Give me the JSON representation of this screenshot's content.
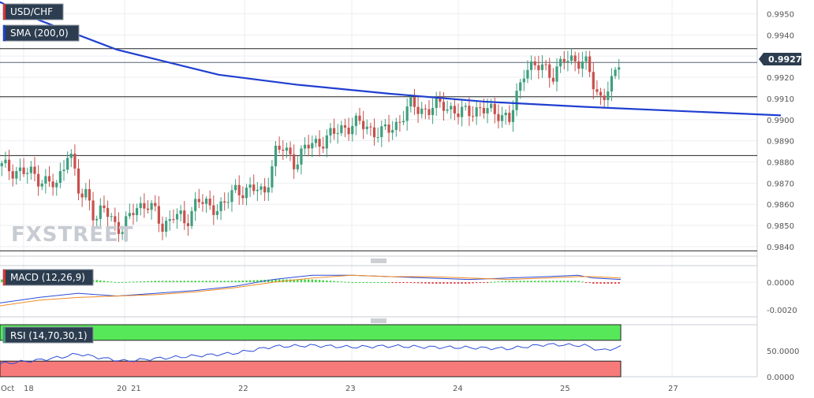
{
  "chart_data": {
    "type": "candlestick",
    "symbol": "USD/CHF",
    "indicators": {
      "sma_label": "SMA (200,0)",
      "macd_label": "MACD (12,26,9)",
      "rsi_label": "RSI (14,70,30,1)"
    },
    "watermark": "FXSTREET",
    "last_price": "0.99270",
    "price_axis": {
      "ticks": [
        "0.9950",
        "0.9940",
        "0.9930",
        "0.9920",
        "0.9910",
        "0.9900",
        "0.9890",
        "0.9880",
        "0.9870",
        "0.9860",
        "0.9850",
        "0.9840"
      ],
      "range": [
        0.98355,
        0.99565
      ]
    },
    "macd_axis": {
      "ticks": [
        "0.0000",
        "-0.0020"
      ],
      "range": [
        -0.0025,
        0.0012
      ]
    },
    "rsi_axis": {
      "ticks": [
        "50.0000",
        "0.0000"
      ],
      "range": [
        0,
        100
      ],
      "overbought": 70,
      "oversold": 30
    },
    "x_axis": {
      "labels": [
        "Oct",
        "18",
        "20",
        "21",
        "22",
        "23",
        "24",
        "25",
        "27"
      ]
    },
    "horizontal_levels": [
      0.99335,
      0.99108,
      0.9883,
      0.9838
    ],
    "sma200": [
      [
        0,
        0.99555
      ],
      [
        0.05,
        0.9947
      ],
      [
        0.15,
        0.9933
      ],
      [
        0.28,
        0.99212
      ],
      [
        0.38,
        0.99165
      ],
      [
        0.5,
        0.99122
      ],
      [
        0.62,
        0.99085
      ],
      [
        0.75,
        0.9906
      ],
      [
        1.0,
        0.9902
      ]
    ],
    "price_path": [
      [
        0,
        0.9878
      ],
      [
        0.045,
        0.9874
      ],
      [
        0.075,
        0.9868
      ],
      [
        0.09,
        0.9887
      ],
      [
        0.095,
        0.988
      ],
      [
        0.105,
        0.9862
      ],
      [
        0.115,
        0.9866
      ],
      [
        0.125,
        0.9852
      ],
      [
        0.135,
        0.9858
      ],
      [
        0.145,
        0.9853
      ],
      [
        0.16,
        0.9848
      ],
      [
        0.175,
        0.9858
      ],
      [
        0.19,
        0.9861
      ],
      [
        0.2,
        0.9856
      ],
      [
        0.21,
        0.9849
      ],
      [
        0.225,
        0.9856
      ],
      [
        0.24,
        0.985
      ],
      [
        0.255,
        0.9864
      ],
      [
        0.27,
        0.9857
      ],
      [
        0.29,
        0.9861
      ],
      [
        0.305,
        0.9866
      ],
      [
        0.325,
        0.9868
      ],
      [
        0.34,
        0.9864
      ],
      [
        0.355,
        0.9885
      ],
      [
        0.365,
        0.9886
      ],
      [
        0.38,
        0.988
      ],
      [
        0.395,
        0.9887
      ],
      [
        0.42,
        0.9891
      ],
      [
        0.445,
        0.9897
      ],
      [
        0.465,
        0.9898
      ],
      [
        0.49,
        0.9893
      ],
      [
        0.51,
        0.9898
      ],
      [
        0.53,
        0.9907
      ],
      [
        0.55,
        0.9904
      ],
      [
        0.57,
        0.9908
      ],
      [
        0.59,
        0.9902
      ],
      [
        0.605,
        0.9905
      ],
      [
        0.625,
        0.9904
      ],
      [
        0.64,
        0.9904
      ],
      [
        0.655,
        0.9899
      ],
      [
        0.665,
        0.9912
      ],
      [
        0.675,
        0.9926
      ],
      [
        0.685,
        0.9924
      ],
      [
        0.7,
        0.9925
      ],
      [
        0.712,
        0.9921
      ],
      [
        0.725,
        0.9928
      ],
      [
        0.74,
        0.9929
      ],
      [
        0.755,
        0.9925
      ],
      [
        0.765,
        0.9913
      ],
      [
        0.772,
        0.9911
      ],
      [
        0.78,
        0.9914
      ],
      [
        0.787,
        0.9917
      ],
      [
        0.795,
        0.9927
      ]
    ],
    "rsi_path": [
      [
        0,
        25
      ],
      [
        0.05,
        32
      ],
      [
        0.08,
        38
      ],
      [
        0.1,
        44
      ],
      [
        0.13,
        36
      ],
      [
        0.16,
        30
      ],
      [
        0.2,
        35
      ],
      [
        0.25,
        40
      ],
      [
        0.3,
        45
      ],
      [
        0.35,
        58
      ],
      [
        0.4,
        60
      ],
      [
        0.45,
        57
      ],
      [
        0.5,
        59
      ],
      [
        0.55,
        57
      ],
      [
        0.6,
        56
      ],
      [
        0.65,
        54
      ],
      [
        0.7,
        62
      ],
      [
        0.75,
        60
      ],
      [
        0.77,
        50
      ],
      [
        0.795,
        57
      ]
    ],
    "macd_path": [
      [
        0,
        -0.0015
      ],
      [
        0.05,
        -0.0011
      ],
      [
        0.1,
        -0.0008
      ],
      [
        0.15,
        -0.001
      ],
      [
        0.2,
        -0.0008
      ],
      [
        0.25,
        -0.0006
      ],
      [
        0.3,
        -0.0003
      ],
      [
        0.35,
        0.0002
      ],
      [
        0.4,
        0.0005
      ],
      [
        0.45,
        0.0005
      ],
      [
        0.5,
        0.0004
      ],
      [
        0.55,
        0.0003
      ],
      [
        0.6,
        0.0002
      ],
      [
        0.65,
        0.0003
      ],
      [
        0.7,
        0.0004
      ],
      [
        0.74,
        0.0005
      ],
      [
        0.76,
        0.0003
      ],
      [
        0.795,
        0.0002
      ]
    ],
    "macd_signal_path": [
      [
        0,
        -0.0017
      ],
      [
        0.05,
        -0.0013
      ],
      [
        0.1,
        -0.0011
      ],
      [
        0.15,
        -0.001
      ],
      [
        0.2,
        -0.0009
      ],
      [
        0.25,
        -0.0007
      ],
      [
        0.3,
        -0.0004
      ],
      [
        0.35,
        0.0
      ],
      [
        0.4,
        0.0003
      ],
      [
        0.45,
        0.0005
      ],
      [
        0.5,
        0.0004
      ],
      [
        0.55,
        0.0004
      ],
      [
        0.6,
        0.0003
      ],
      [
        0.65,
        0.0002
      ],
      [
        0.7,
        0.0003
      ],
      [
        0.74,
        0.0004
      ],
      [
        0.76,
        0.0004
      ],
      [
        0.795,
        0.0003
      ]
    ],
    "colors": {
      "bull": "#3e9f7e",
      "bear": "#c9504c",
      "sma": "#1f3fd0",
      "price_tag": "#2c3d50",
      "label_bg": "#2c3d50",
      "level_line": "#222222",
      "rsi_over": "#57e85a",
      "rsi_under": "#f77a7a",
      "rsi_line": "#2b4bd6",
      "macd_line": "#2b4bd6",
      "signal_line": "#f08a24",
      "hist_pos": "#3ed23e",
      "hist_neg": "#e23232"
    }
  }
}
